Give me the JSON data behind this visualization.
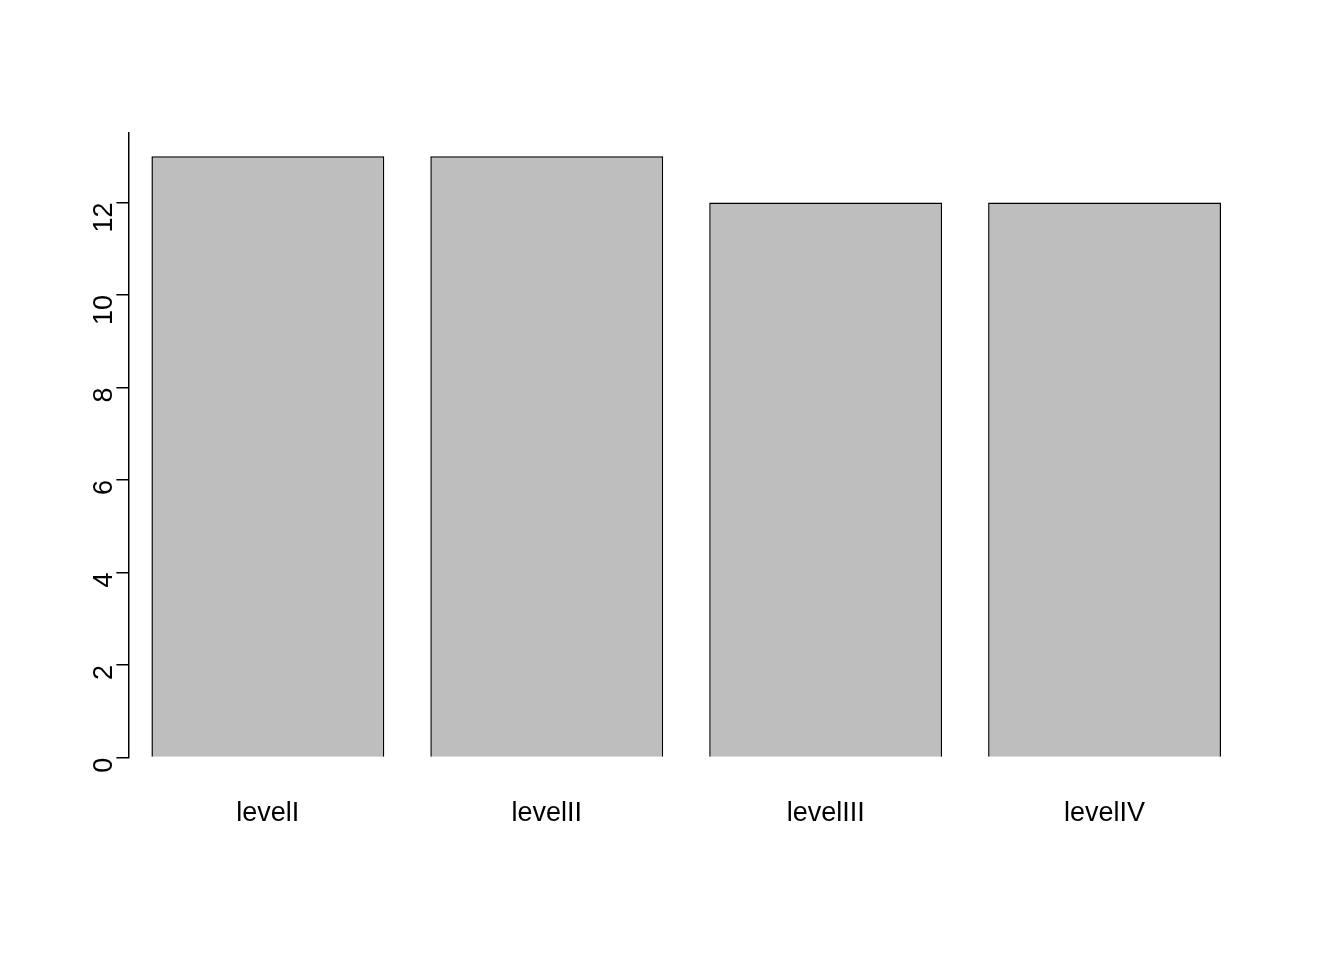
{
  "chart_data": {
    "type": "bar",
    "categories": [
      "levelI",
      "levelII",
      "levelIII",
      "levelIV"
    ],
    "values": [
      13,
      13,
      12,
      12
    ],
    "color": "#bebebe",
    "ylim": [
      0,
      13.5
    ],
    "yticks": [
      0,
      2,
      4,
      6,
      8,
      10,
      12
    ],
    "grid": false,
    "legend": false
  }
}
